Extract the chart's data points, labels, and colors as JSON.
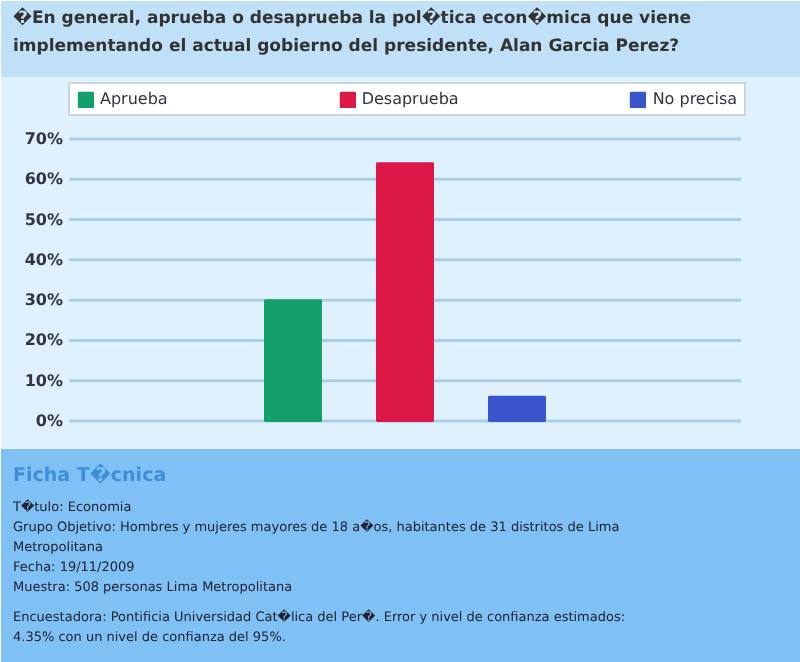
{
  "chart_data": {
    "type": "bar",
    "title": "�En general, aprueba o desaprueba la pol�tica econ�mica que viene implementando el actual gobierno del presidente, Alan Garcia Perez?",
    "categories": [
      null
    ],
    "series": [
      {
        "name": "Aprueba",
        "color": "#159f6b",
        "values": [
          30
        ]
      },
      {
        "name": "Desaprueba",
        "color": "#dc1847",
        "values": [
          64
        ]
      },
      {
        "name": "No precisa",
        "color": "#3a55cc",
        "values": [
          6
        ]
      }
    ],
    "ylim": [
      0,
      70
    ],
    "yticks": [
      {
        "value": 0,
        "label": "0%"
      },
      {
        "value": 10,
        "label": "10%"
      },
      {
        "value": 20,
        "label": "20%"
      },
      {
        "value": 30,
        "label": "30%"
      },
      {
        "value": 40,
        "label": "40%"
      },
      {
        "value": 50,
        "label": "50%"
      },
      {
        "value": 60,
        "label": "60%"
      },
      {
        "value": 70,
        "label": "70%"
      }
    ],
    "grid": "y",
    "legend": "top",
    "tick_labels": "y",
    "annotations": [
      "Ficha T�cnica",
      "T�tulo: Economia",
      "Grupo Objetivo: Hombres y mujeres mayores de 18 a�os, habitantes de 31 distritos de Lima Metropolitana",
      "Fecha: 19/11/2009",
      "Muestra: 508 personas Lima Metropolitana",
      "Encuestadora: Pontificia Universidad Cat�lica del Per�. Error y nivel de confianza estimados: 4.35% con un nivel de confianza del 95%."
    ]
  }
}
